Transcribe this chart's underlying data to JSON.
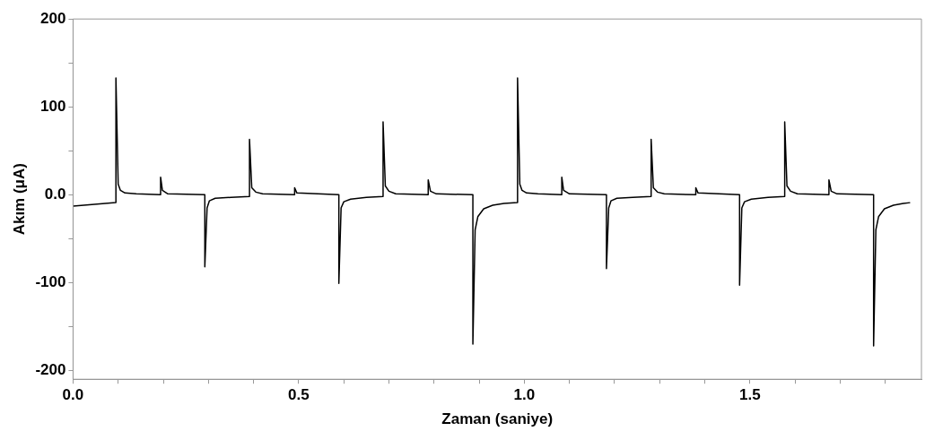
{
  "chart_data": {
    "type": "line",
    "xlabel": "Zaman (saniye)",
    "ylabel": "Akım (μA)",
    "series": [
      {
        "color": "#000000",
        "x": [
          0,
          0.095,
          0.095,
          0.1,
          0.105,
          0.115,
          0.14,
          0.194,
          0.194,
          0.198,
          0.21,
          0.292,
          0.292,
          0.297,
          0.302,
          0.315,
          0.35,
          0.391,
          0.391,
          0.396,
          0.405,
          0.42,
          0.491,
          0.491,
          0.496,
          0.589,
          0.589,
          0.594,
          0.6,
          0.615,
          0.65,
          0.687,
          0.687,
          0.692,
          0.7,
          0.715,
          0.787,
          0.787,
          0.792,
          0.805,
          0.886,
          0.886,
          0.891,
          0.897,
          0.91,
          0.93,
          0.955,
          0.985,
          0.985,
          0.99,
          0.995,
          1.005,
          1.03,
          1.083,
          1.083,
          1.087,
          1.1,
          1.182,
          1.182,
          1.187,
          1.192,
          1.205,
          1.24,
          1.281,
          1.281,
          1.286,
          1.295,
          1.31,
          1.38,
          1.38,
          1.385,
          1.477,
          1.477,
          1.482,
          1.488,
          1.503,
          1.54,
          1.577,
          1.577,
          1.582,
          1.59,
          1.605,
          1.675,
          1.675,
          1.68,
          1.693,
          1.774,
          1.774,
          1.779,
          1.785,
          1.798,
          1.818,
          1.84,
          1.855
        ],
        "values": [
          -13,
          -9,
          133,
          12,
          5,
          2,
          1,
          0,
          20,
          5,
          1,
          0,
          -82,
          -15,
          -7,
          -4,
          -3,
          -2,
          63,
          8,
          3,
          1,
          0,
          8,
          2,
          0,
          -101,
          -15,
          -8,
          -5,
          -3,
          -2,
          83,
          10,
          4,
          1,
          0,
          17,
          4,
          1,
          0,
          -170,
          -40,
          -25,
          -16,
          -12,
          -10,
          -9,
          133,
          12,
          5,
          2,
          1,
          0,
          20,
          5,
          1,
          0,
          -84,
          -15,
          -7,
          -4,
          -3,
          -2,
          63,
          8,
          3,
          1,
          0,
          8,
          2,
          0,
          -103,
          -15,
          -8,
          -5,
          -3,
          -2,
          83,
          10,
          4,
          1,
          0,
          17,
          4,
          1,
          0,
          -172,
          -40,
          -25,
          -16,
          -12,
          -10,
          -9
        ]
      }
    ],
    "xlim": [
      0,
      1.88
    ],
    "xticks": [
      {
        "value": 0,
        "label": "0.0"
      },
      {
        "value": 0.1,
        "label": null
      },
      {
        "value": 0.2,
        "label": null
      },
      {
        "value": 0.3,
        "label": null
      },
      {
        "value": 0.4,
        "label": null
      },
      0.5,
      {
        "value": 0.6,
        "label": null
      },
      {
        "value": 0.7,
        "label": null
      },
      {
        "value": 0.8,
        "label": null
      },
      {
        "value": 0.9,
        "label": null
      },
      {
        "value": 1,
        "label": "1.0"
      },
      {
        "value": 1.1,
        "label": null
      },
      {
        "value": 1.2,
        "label": null
      },
      {
        "value": 1.3,
        "label": null
      },
      {
        "value": 1.4,
        "label": null
      },
      1.5,
      {
        "value": 1.6,
        "label": null
      },
      {
        "value": 1.7,
        "label": null
      },
      {
        "value": 1.8,
        "label": null
      }
    ],
    "ylim": [
      -210,
      200
    ],
    "yticks": [
      -200,
      {
        "value": -150,
        "label": null
      },
      -100,
      {
        "value": -50,
        "label": null
      },
      {
        "value": 0,
        "label": "0.0"
      },
      {
        "value": 50,
        "label": null
      },
      100,
      {
        "value": 150,
        "label": null
      },
      200
    ],
    "grid": false,
    "legend": false,
    "marker": "none",
    "line_style": "solid"
  }
}
